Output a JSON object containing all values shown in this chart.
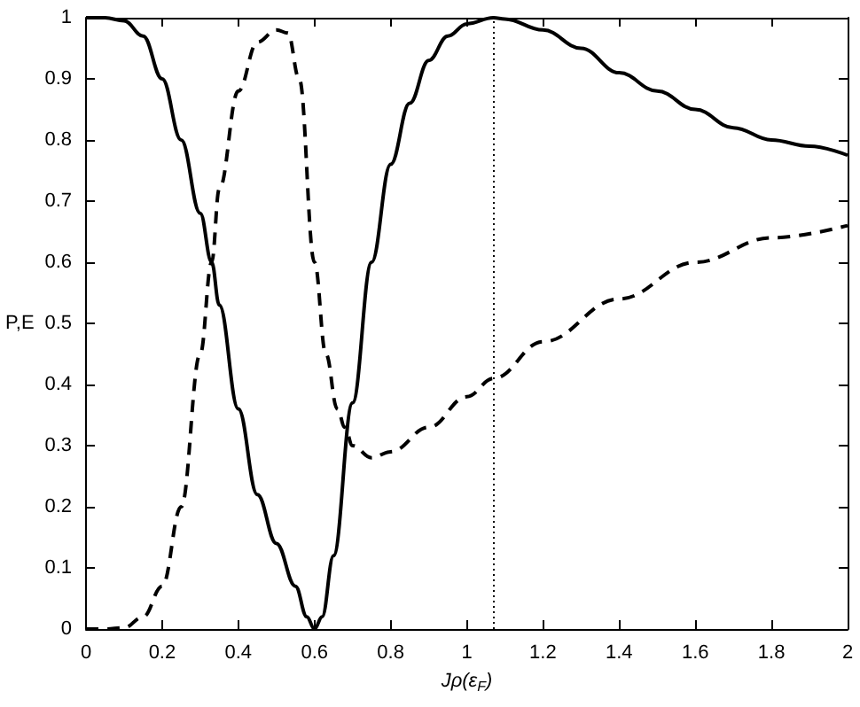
{
  "chart_data": {
    "type": "line",
    "xlabel": "Jρ(ε$_{F}$)",
    "ylabel": "P,E",
    "xlim": [
      0,
      2
    ],
    "xticks": [
      0,
      0.2,
      0.4,
      0.6,
      0.8,
      1,
      1.2,
      1.4,
      1.6,
      1.8,
      2
    ],
    "ylim": [
      0,
      1
    ],
    "yticks": [
      0,
      0.1,
      0.2,
      0.3,
      0.4,
      0.5,
      0.6,
      0.7,
      0.8,
      0.9,
      1
    ],
    "grid": false,
    "marker": "none",
    "series": [
      {
        "color": "#000000",
        "line_style": "solid",
        "x": [
          0,
          0.05,
          0.1,
          0.15,
          0.2,
          0.25,
          0.3,
          0.33,
          0.35,
          0.4,
          0.45,
          0.5,
          0.55,
          0.58,
          0.6,
          0.62,
          0.65,
          0.7,
          0.75,
          0.8,
          0.85,
          0.9,
          0.95,
          1.0,
          1.07,
          1.1,
          1.2,
          1.3,
          1.4,
          1.5,
          1.6,
          1.7,
          1.8,
          1.9,
          2.0
        ],
        "values": [
          1,
          1,
          0.995,
          0.97,
          0.9,
          0.8,
          0.68,
          0.6,
          0.53,
          0.36,
          0.22,
          0.14,
          0.07,
          0.02,
          0,
          0.02,
          0.12,
          0.37,
          0.6,
          0.76,
          0.86,
          0.93,
          0.97,
          0.99,
          1.0,
          0.998,
          0.98,
          0.95,
          0.91,
          0.88,
          0.85,
          0.82,
          0.8,
          0.79,
          0.775
        ]
      },
      {
        "color": "#000000",
        "line_style": "dashed",
        "x": [
          0,
          0.05,
          0.1,
          0.15,
          0.2,
          0.25,
          0.3,
          0.33,
          0.35,
          0.4,
          0.45,
          0.5,
          0.53,
          0.56,
          0.6,
          0.63,
          0.66,
          0.68,
          0.7,
          0.75,
          0.8,
          0.9,
          1.0,
          1.07,
          1.2,
          1.4,
          1.6,
          1.8,
          2.0
        ],
        "values": [
          0,
          0,
          0.002,
          0.02,
          0.07,
          0.2,
          0.45,
          0.6,
          0.72,
          0.88,
          0.96,
          0.98,
          0.975,
          0.9,
          0.6,
          0.45,
          0.36,
          0.33,
          0.3,
          0.28,
          0.29,
          0.33,
          0.38,
          0.41,
          0.47,
          0.54,
          0.6,
          0.64,
          0.66
        ]
      }
    ],
    "ref_lines": [
      {
        "axis": "x",
        "value": 1.07,
        "line_style": "dotted",
        "color": "#000000"
      }
    ]
  }
}
